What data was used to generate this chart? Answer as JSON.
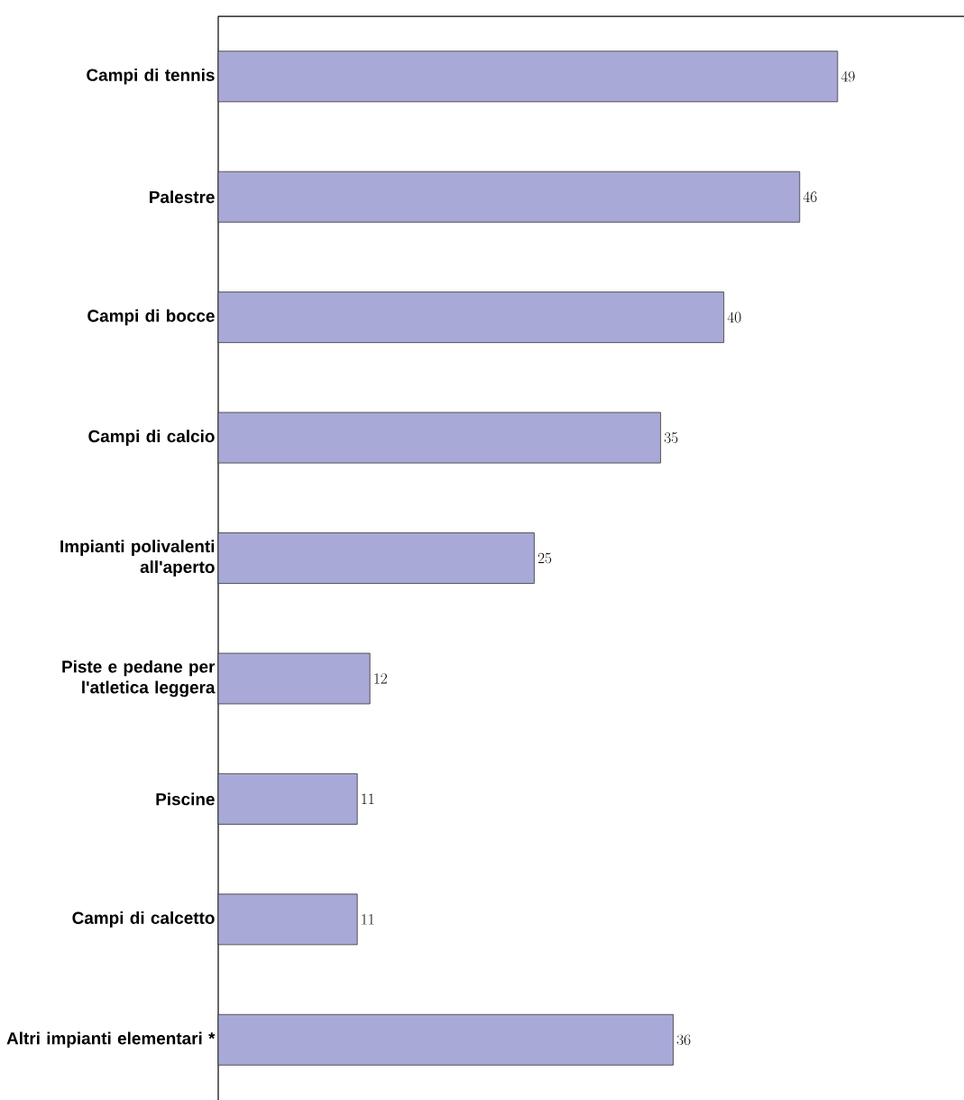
{
  "chart_data": {
    "type": "bar",
    "orientation": "horizontal",
    "categories": [
      "Campi di tennis",
      "Palestre",
      "Campi di bocce",
      "Campi di calcio",
      "Impianti polivalenti all'aperto",
      "Piste e pedane per l'atletica leggera",
      "Piscine",
      "Campi di calcetto",
      "Altri impianti elementari *"
    ],
    "values": [
      49,
      46,
      40,
      35,
      25,
      12,
      11,
      11,
      36
    ],
    "color": "#a9a9d8",
    "data_labels": true,
    "xlim": [
      0,
      59
    ]
  }
}
